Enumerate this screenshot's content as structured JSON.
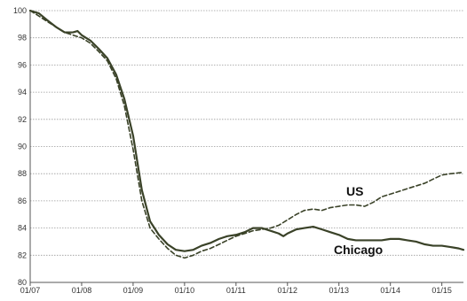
{
  "chart_data": {
    "type": "line",
    "title": "",
    "xlabel": "",
    "ylabel": "",
    "ylim": [
      80,
      100
    ],
    "y_ticks": [
      80,
      82,
      84,
      86,
      88,
      90,
      92,
      94,
      96,
      98,
      100
    ],
    "x_range": [
      2007.0,
      2015.42
    ],
    "x_ticks": [
      {
        "label": "01/07",
        "x": 2007
      },
      {
        "label": "01/08",
        "x": 2008
      },
      {
        "label": "01/09",
        "x": 2009
      },
      {
        "label": "01/10",
        "x": 2010
      },
      {
        "label": "01/11",
        "x": 2011
      },
      {
        "label": "01/12",
        "x": 2012
      },
      {
        "label": "01/13",
        "x": 2013
      },
      {
        "label": "01/14",
        "x": 2014
      },
      {
        "label": "01/15",
        "x": 2015
      }
    ],
    "grid": true,
    "legend": "inline labels",
    "colors": {
      "line": "#3a4228",
      "grid": "#9a9a9a",
      "axis": "#555555"
    },
    "series": [
      {
        "name": "Chicago",
        "style": "solid",
        "points": [
          [
            2007.0,
            100.0
          ],
          [
            2007.17,
            99.8
          ],
          [
            2007.33,
            99.3
          ],
          [
            2007.5,
            98.8
          ],
          [
            2007.67,
            98.4
          ],
          [
            2007.83,
            98.4
          ],
          [
            2007.92,
            98.5
          ],
          [
            2008.0,
            98.2
          ],
          [
            2008.17,
            97.8
          ],
          [
            2008.33,
            97.2
          ],
          [
            2008.5,
            96.5
          ],
          [
            2008.67,
            95.3
          ],
          [
            2008.83,
            93.5
          ],
          [
            2009.0,
            90.8
          ],
          [
            2009.17,
            86.8
          ],
          [
            2009.33,
            84.5
          ],
          [
            2009.5,
            83.5
          ],
          [
            2009.67,
            82.8
          ],
          [
            2009.83,
            82.4
          ],
          [
            2010.0,
            82.3
          ],
          [
            2010.17,
            82.4
          ],
          [
            2010.33,
            82.7
          ],
          [
            2010.5,
            82.9
          ],
          [
            2010.67,
            83.2
          ],
          [
            2010.83,
            83.4
          ],
          [
            2011.0,
            83.5
          ],
          [
            2011.17,
            83.7
          ],
          [
            2011.33,
            84.0
          ],
          [
            2011.5,
            84.0
          ],
          [
            2011.67,
            83.8
          ],
          [
            2011.83,
            83.6
          ],
          [
            2011.92,
            83.4
          ],
          [
            2012.0,
            83.6
          ],
          [
            2012.17,
            83.9
          ],
          [
            2012.33,
            84.0
          ],
          [
            2012.5,
            84.1
          ],
          [
            2012.67,
            83.9
          ],
          [
            2012.83,
            83.7
          ],
          [
            2013.0,
            83.5
          ],
          [
            2013.17,
            83.2
          ],
          [
            2013.33,
            83.1
          ],
          [
            2013.5,
            83.1
          ],
          [
            2013.67,
            83.1
          ],
          [
            2013.83,
            83.1
          ],
          [
            2014.0,
            83.2
          ],
          [
            2014.17,
            83.2
          ],
          [
            2014.33,
            83.1
          ],
          [
            2014.5,
            83.0
          ],
          [
            2014.67,
            82.8
          ],
          [
            2014.83,
            82.7
          ],
          [
            2015.0,
            82.7
          ],
          [
            2015.17,
            82.6
          ],
          [
            2015.33,
            82.5
          ],
          [
            2015.42,
            82.4
          ]
        ]
      },
      {
        "name": "US",
        "style": "dashed",
        "points": [
          [
            2007.0,
            100.0
          ],
          [
            2007.17,
            99.6
          ],
          [
            2007.33,
            99.2
          ],
          [
            2007.5,
            98.8
          ],
          [
            2007.67,
            98.4
          ],
          [
            2007.83,
            98.2
          ],
          [
            2008.0,
            98.0
          ],
          [
            2008.17,
            97.6
          ],
          [
            2008.33,
            97.0
          ],
          [
            2008.5,
            96.3
          ],
          [
            2008.67,
            95.0
          ],
          [
            2008.83,
            93.0
          ],
          [
            2009.0,
            89.8
          ],
          [
            2009.17,
            86.0
          ],
          [
            2009.33,
            84.0
          ],
          [
            2009.5,
            83.2
          ],
          [
            2009.67,
            82.5
          ],
          [
            2009.83,
            82.0
          ],
          [
            2010.0,
            81.8
          ],
          [
            2010.17,
            82.0
          ],
          [
            2010.33,
            82.3
          ],
          [
            2010.5,
            82.5
          ],
          [
            2010.67,
            82.8
          ],
          [
            2010.83,
            83.1
          ],
          [
            2011.0,
            83.4
          ],
          [
            2011.17,
            83.6
          ],
          [
            2011.33,
            83.8
          ],
          [
            2011.5,
            83.9
          ],
          [
            2011.67,
            84.0
          ],
          [
            2011.83,
            84.2
          ],
          [
            2012.0,
            84.6
          ],
          [
            2012.17,
            85.0
          ],
          [
            2012.33,
            85.3
          ],
          [
            2012.5,
            85.4
          ],
          [
            2012.67,
            85.3
          ],
          [
            2012.83,
            85.5
          ],
          [
            2013.0,
            85.6
          ],
          [
            2013.17,
            85.7
          ],
          [
            2013.33,
            85.7
          ],
          [
            2013.5,
            85.6
          ],
          [
            2013.67,
            85.9
          ],
          [
            2013.83,
            86.3
          ],
          [
            2014.0,
            86.5
          ],
          [
            2014.17,
            86.7
          ],
          [
            2014.33,
            86.9
          ],
          [
            2014.5,
            87.1
          ],
          [
            2014.67,
            87.3
          ],
          [
            2014.83,
            87.6
          ],
          [
            2015.0,
            87.9
          ],
          [
            2015.17,
            88.0
          ],
          [
            2015.42,
            88.1
          ]
        ]
      }
    ],
    "labels": [
      {
        "text": "US",
        "series": "US"
      },
      {
        "text": "Chicago",
        "series": "Chicago"
      }
    ]
  }
}
